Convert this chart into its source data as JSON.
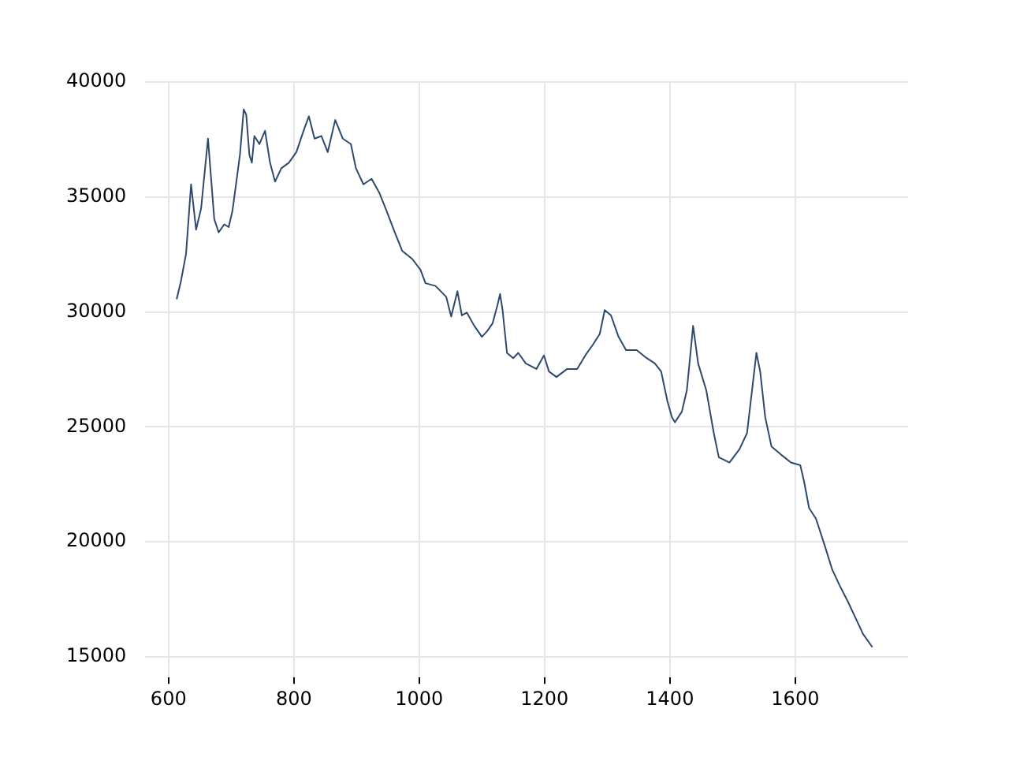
{
  "chart_data": {
    "type": "line",
    "color": "#2d4a6e",
    "grid": true,
    "x": [
      613,
      620,
      628,
      636,
      644,
      652,
      663,
      673,
      680,
      689,
      696,
      702,
      710,
      714,
      720,
      724,
      729,
      733,
      737,
      745,
      754,
      762,
      770,
      780,
      792,
      804,
      817,
      824,
      833,
      844,
      854,
      866,
      878,
      891,
      899,
      911,
      924,
      936,
      948,
      961,
      973,
      989,
      1002,
      1010,
      1026,
      1043,
      1051,
      1061,
      1068,
      1076,
      1088,
      1100,
      1108,
      1117,
      1125,
      1129,
      1133,
      1140,
      1150,
      1158,
      1170,
      1187,
      1199,
      1207,
      1219,
      1236,
      1252,
      1265,
      1277,
      1288,
      1296,
      1306,
      1318,
      1330,
      1347,
      1363,
      1376,
      1386,
      1396,
      1403,
      1408,
      1419,
      1427,
      1437,
      1445,
      1458,
      1470,
      1478,
      1495,
      1511,
      1523,
      1532,
      1538,
      1544,
      1552,
      1562,
      1577,
      1593,
      1608,
      1614,
      1622,
      1633,
      1647,
      1659,
      1671,
      1684,
      1696,
      1708,
      1723
    ],
    "values": [
      30550,
      31360,
      32530,
      35550,
      33580,
      34500,
      37540,
      34040,
      33460,
      33810,
      33690,
      34390,
      36020,
      36840,
      38810,
      38580,
      36840,
      36490,
      37650,
      37300,
      37880,
      36490,
      35670,
      36250,
      36490,
      36950,
      38000,
      38510,
      37540,
      37650,
      36950,
      38350,
      37540,
      37300,
      36250,
      35550,
      35790,
      35200,
      34390,
      33460,
      32650,
      32300,
      31830,
      31250,
      31130,
      30660,
      29800,
      30900,
      29850,
      29970,
      29390,
      28920,
      29150,
      29500,
      30310,
      30780,
      30080,
      28220,
      27990,
      28220,
      27760,
      27520,
      28110,
      27410,
      27170,
      27520,
      27520,
      28110,
      28570,
      29040,
      30080,
      29850,
      28920,
      28340,
      28340,
      27990,
      27760,
      27410,
      26120,
      25430,
      25200,
      25660,
      26590,
      29390,
      27760,
      26590,
      24730,
      23680,
      23450,
      24030,
      24730,
      26820,
      28220,
      27410,
      25430,
      24150,
      23800,
      23450,
      23330,
      22630,
      21470,
      21010,
      19840,
      18790,
      18090,
      17400,
      16700,
      16000,
      15420
    ],
    "xlim": [
      563,
      1780
    ],
    "ylim": [
      14100,
      40000
    ],
    "xticks": [
      600,
      800,
      1000,
      1200,
      1400,
      1600
    ],
    "yticks": [
      15000,
      20000,
      25000,
      30000,
      35000,
      40000
    ]
  }
}
